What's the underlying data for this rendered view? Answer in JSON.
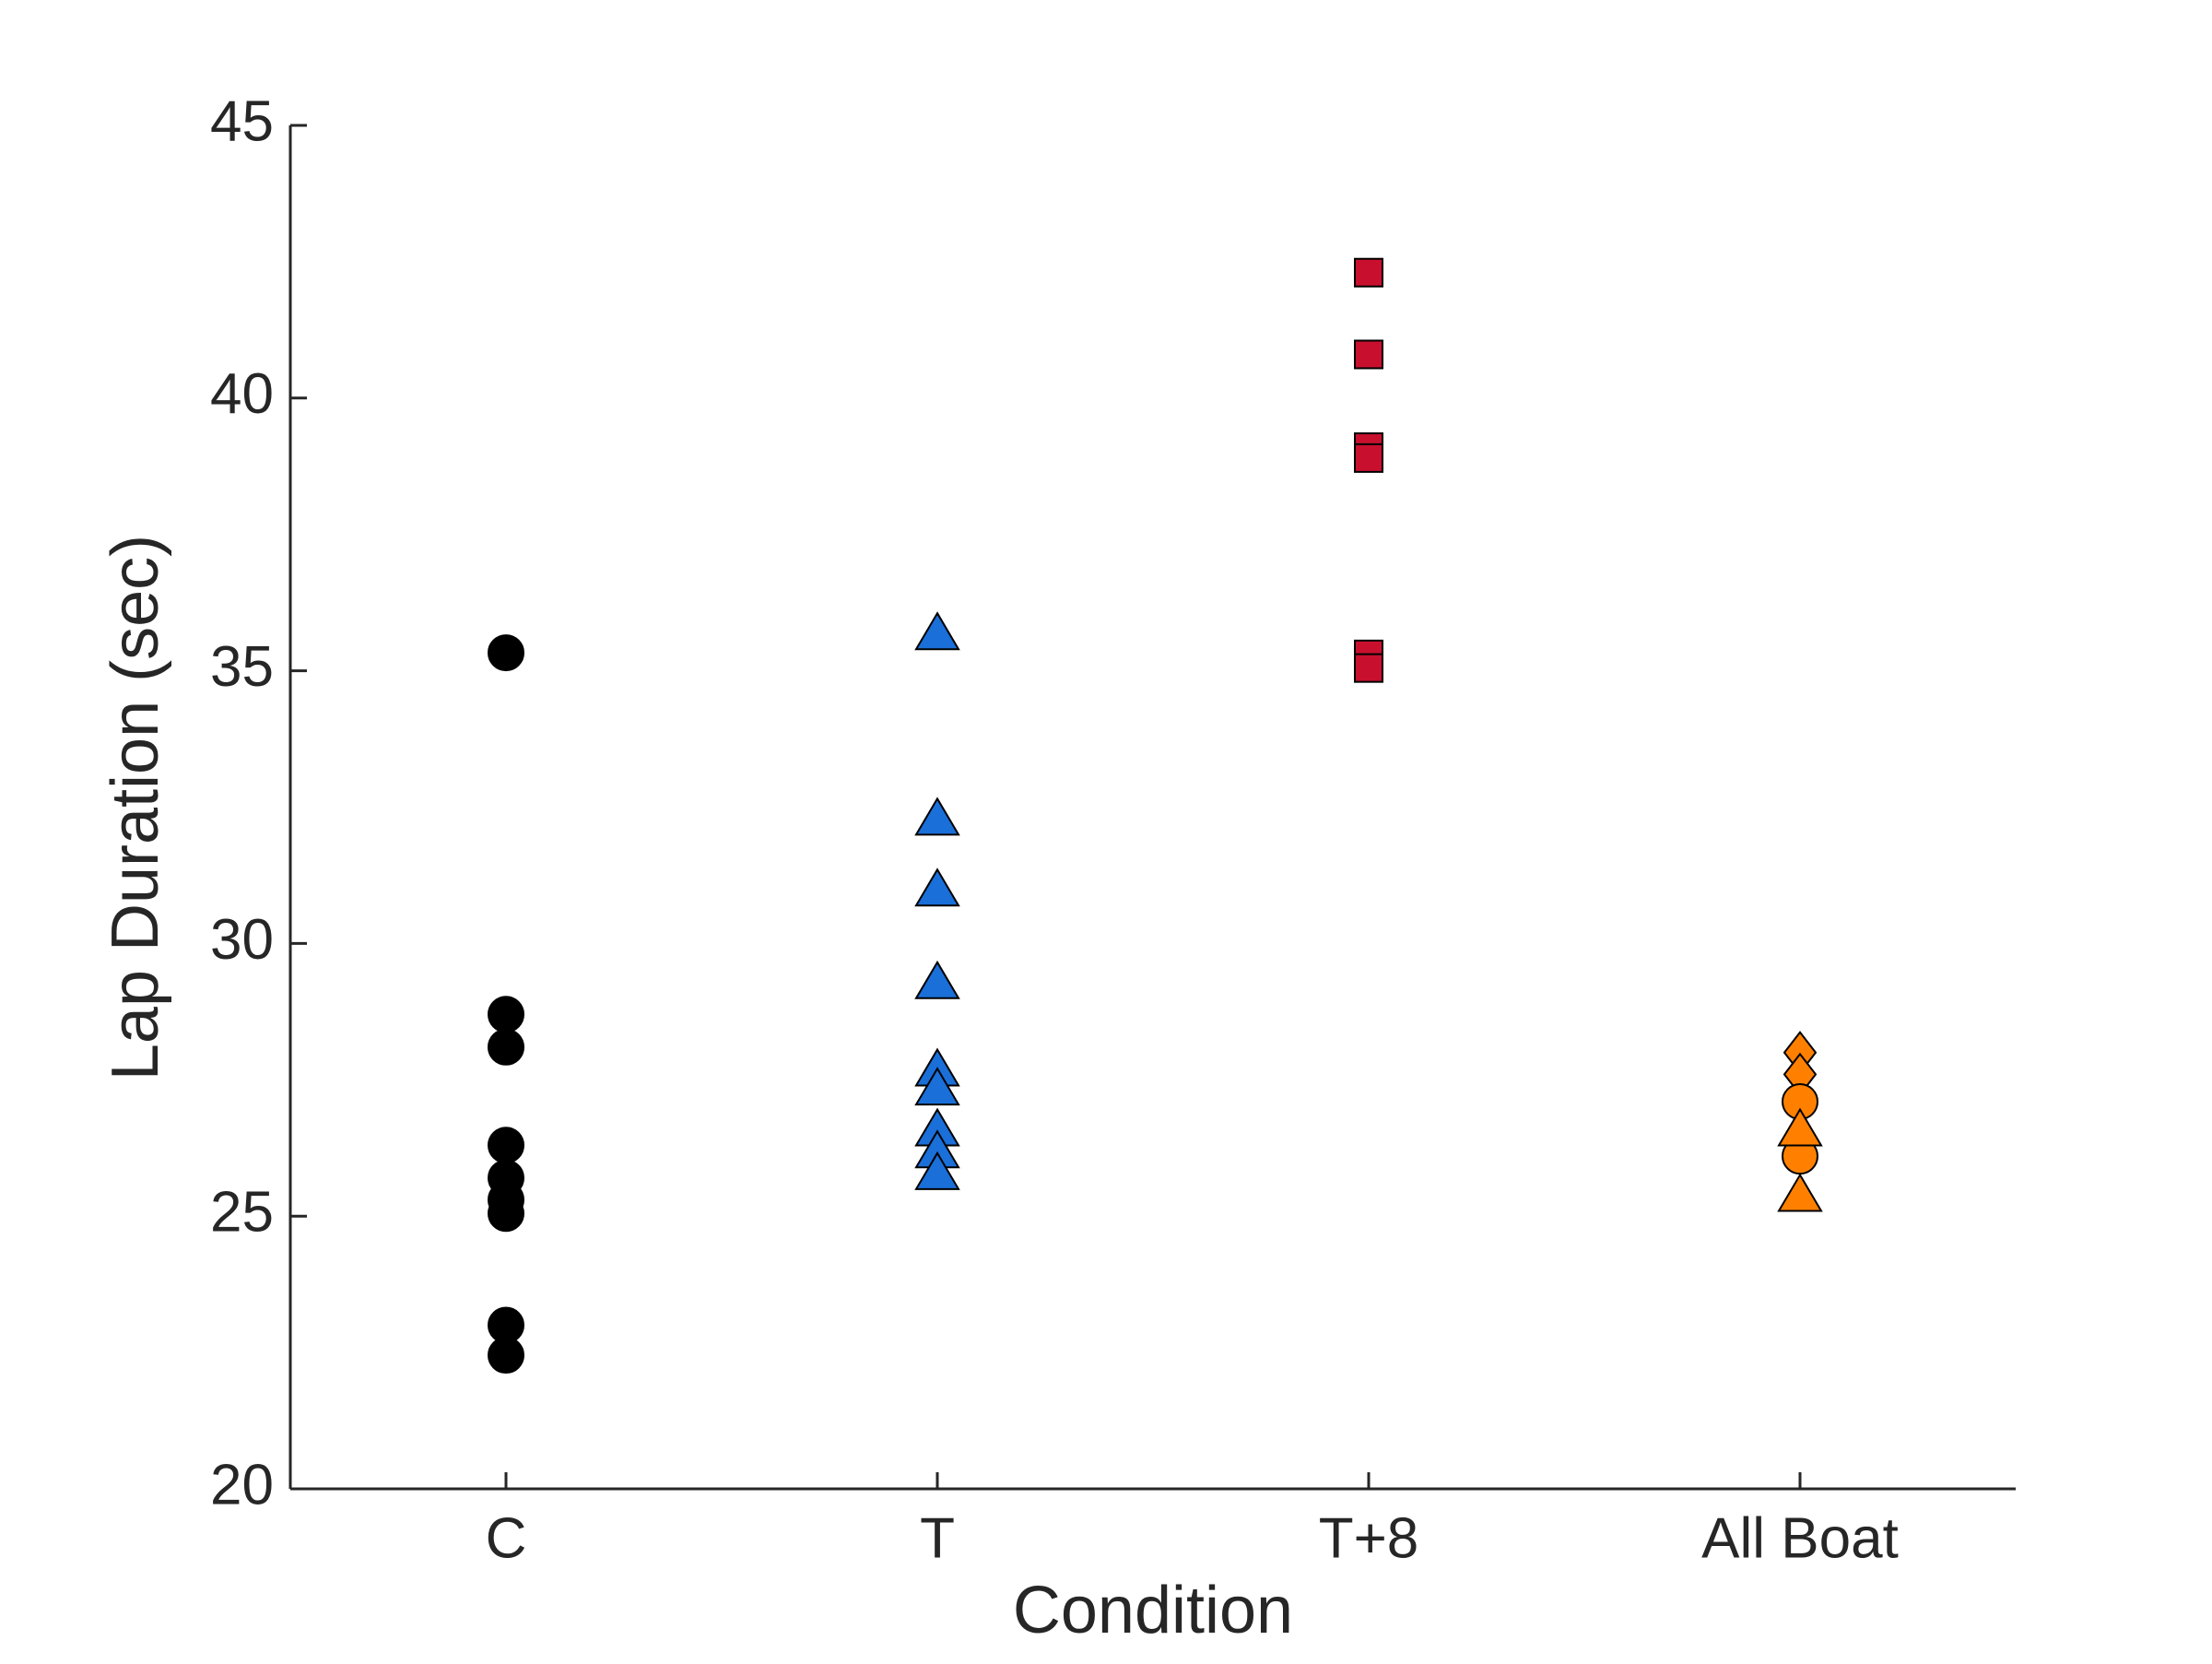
{
  "chart_data": {
    "type": "scatter",
    "x_label": "Condition",
    "y_label": "Lap Duration (sec)",
    "categories": [
      "C",
      "T",
      "T+8",
      "All Boat"
    ],
    "ylim": [
      20,
      45
    ],
    "yticks": [
      20,
      25,
      30,
      35,
      40,
      45
    ],
    "grid": false,
    "series": [
      {
        "marker": "circle",
        "color": "#000000",
        "values": [
          [
            35.33,
            28.7,
            28.1,
            26.3,
            25.7,
            25.3,
            25.05,
            23.0,
            22.45
          ],
          [],
          [],
          []
        ]
      },
      {
        "marker": "triangle",
        "color": "#1a6fd9",
        "values": [
          [],
          [
            35.7,
            32.3,
            31.0,
            29.3,
            27.7,
            27.35,
            26.6,
            26.2,
            25.8
          ],
          [],
          []
        ]
      },
      {
        "marker": "square",
        "color": "#c8102e",
        "values": [
          [],
          [],
          [
            42.3,
            40.8,
            39.1,
            38.9,
            35.3,
            35.05
          ],
          []
        ]
      },
      {
        "marker": "diamond",
        "color": "#ff8000",
        "values": [
          [],
          [],
          [],
          [
            28.0,
            27.6
          ]
        ]
      },
      {
        "marker": "circle",
        "color": "#ff8000",
        "values": [
          [],
          [],
          [],
          [
            27.1,
            26.1
          ]
        ]
      },
      {
        "marker": "triangle",
        "color": "#ff8000",
        "values": [
          [],
          [],
          [],
          [
            26.6,
            25.4
          ]
        ]
      }
    ]
  }
}
